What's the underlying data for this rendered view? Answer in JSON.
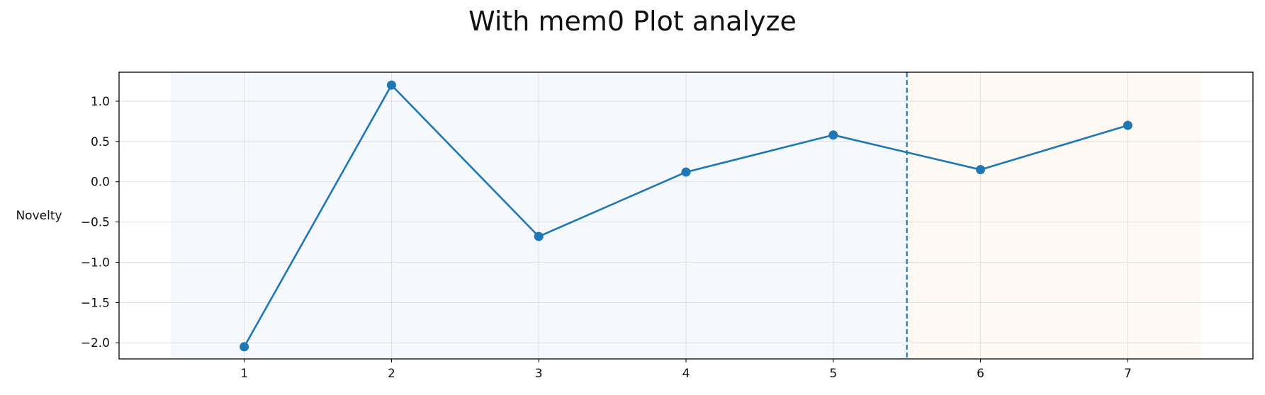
{
  "chart_data": {
    "type": "line",
    "title": "With mem0 Plot analyze",
    "xlabel": "",
    "ylabel": "Novelty",
    "x": [
      1,
      2,
      3,
      4,
      5,
      6,
      7
    ],
    "series": [
      {
        "values": [
          -2.05,
          1.2,
          -0.68,
          0.12,
          0.58,
          0.15,
          0.7
        ],
        "color": "#1f77b4"
      }
    ],
    "xlim": [
      0.15,
      7.85
    ],
    "ylim": [
      -2.2,
      1.36
    ],
    "xticks": [
      1,
      2,
      3,
      4,
      5,
      6,
      7
    ],
    "xtick_labels": [
      "1",
      "2",
      "3",
      "4",
      "5",
      "6",
      "7"
    ],
    "yticks": [
      1.0,
      0.5,
      0.0,
      -0.5,
      -1.0,
      -1.5,
      -2.0
    ],
    "ytick_labels": [
      "1.0",
      "0.5",
      "0.0",
      "−0.5",
      "−1.0",
      "−1.5",
      "−2.0"
    ],
    "grid": true,
    "shaded_regions": [
      {
        "x_start": 0.5,
        "x_end": 5.5,
        "color": "#f5f8fc"
      },
      {
        "x_start": 5.5,
        "x_end": 7.5,
        "color": "#fff9f4"
      }
    ],
    "vertical_line": {
      "x": 5.5,
      "style": "dashed",
      "color": "#1f77b4"
    }
  }
}
